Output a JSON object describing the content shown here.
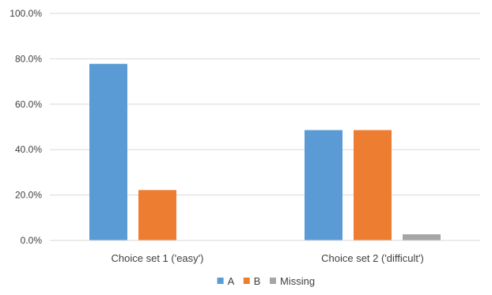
{
  "chart_data": {
    "type": "bar",
    "title": "",
    "xlabel": "",
    "ylabel": "",
    "categories": [
      "Choice set 1 ('easy')",
      "Choice set 2 ('difficult')"
    ],
    "series": [
      {
        "name": "A",
        "values": [
          77.8,
          48.6
        ],
        "color": "#5b9bd5"
      },
      {
        "name": "B",
        "values": [
          22.2,
          48.6
        ],
        "color": "#ed7d31"
      },
      {
        "name": "Missing",
        "values": [
          0,
          2.7
        ],
        "color": "#a5a5a5"
      }
    ],
    "ylim": [
      0,
      100
    ],
    "yticks": [
      "0.0%",
      "20.0%",
      "40.0%",
      "60.0%",
      "80.0%",
      "100.0%"
    ],
    "ytick_values": [
      0,
      20,
      40,
      60,
      80,
      100
    ],
    "grid": true,
    "legend_position": "bottom"
  }
}
